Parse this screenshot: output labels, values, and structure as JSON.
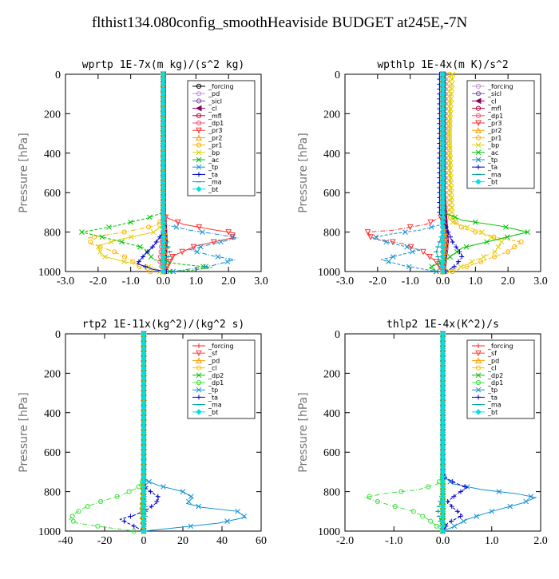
{
  "page": {
    "title": "flthist134.080config_smoothHeaviside  BUDGET at245E,-7N"
  },
  "chart_data": [
    {
      "type": "line",
      "title": "wprtp  1E-7x(m kg)/(s^2 kg)",
      "ylabel": "Pressure [hPa]",
      "xlim": [
        -3.0,
        3.0
      ],
      "ylim": [
        1000,
        0
      ],
      "xticks": [
        "-3.0",
        "-2.0",
        "-1.0",
        "0.0",
        "1.0",
        "2.0",
        "3.0"
      ],
      "yticks": [
        "0",
        "200",
        "400",
        "600",
        "800",
        "1000"
      ],
      "legend_position": "top-right",
      "series": [
        {
          "name": "_forcing",
          "color": "#000000",
          "marker": "o",
          "x": [
            0,
            0,
            0
          ],
          "y": [
            0,
            500,
            1000
          ]
        },
        {
          "name": "_pd",
          "color": "#c890d8",
          "marker": "o",
          "x": [
            0,
            0,
            0
          ],
          "y": [
            0,
            500,
            1000
          ]
        },
        {
          "name": "_sicl",
          "color": "#8050a8",
          "marker": "o",
          "x": [
            0,
            0,
            0
          ],
          "y": [
            0,
            500,
            1000
          ]
        },
        {
          "name": "_cl",
          "color": "#8b0060",
          "marker": "<",
          "x": [
            0,
            0,
            0.05,
            0
          ],
          "y": [
            0,
            700,
            850,
            1000
          ]
        },
        {
          "name": "_mfl",
          "color": "#c00040",
          "marker": "o",
          "x": [
            0,
            0,
            0
          ],
          "y": [
            0,
            500,
            1000
          ]
        },
        {
          "name": "_dp1",
          "color": "#ff5070",
          "marker": "o",
          "x": [
            0,
            0,
            -0.1,
            0
          ],
          "y": [
            0,
            780,
            950,
            1000
          ]
        },
        {
          "name": "_pr3",
          "color": "#ff3030",
          "marker": "v",
          "x": [
            0,
            0,
            0.6,
            1.6,
            2.2,
            2.1,
            1.0,
            0.3,
            0.05
          ],
          "y": [
            0,
            720,
            760,
            790,
            805,
            830,
            870,
            920,
            1000
          ]
        },
        {
          "name": "_pr2",
          "color": "#ff9c00",
          "marker": "^",
          "x": [
            0,
            0,
            0.05,
            0
          ],
          "y": [
            0,
            700,
            850,
            1000
          ]
        },
        {
          "name": "_pr1",
          "color": "#ffb000",
          "marker": "o",
          "x": [
            0,
            0,
            -0.3,
            -1.2,
            -2.3,
            -2.2,
            -1.5,
            -1.0,
            -0.8,
            -0.4
          ],
          "y": [
            0,
            740,
            770,
            800,
            830,
            860,
            900,
            940,
            970,
            1000
          ]
        },
        {
          "name": "_bp",
          "color": "#e0d000",
          "marker": "x",
          "x": [
            0,
            0,
            -0.3,
            -1.4,
            -2.0,
            -1.9,
            -1.2,
            -0.3,
            -0.1
          ],
          "y": [
            0,
            760,
            800,
            840,
            870,
            920,
            950,
            980,
            1000
          ]
        },
        {
          "name": "_ac",
          "color": "#00c000",
          "marker": "x",
          "x": [
            0,
            0,
            -0.5,
            -1.5,
            -2.5,
            -1.5,
            -0.6,
            -0.3,
            0.4,
            1.5,
            0.8,
            0.2
          ],
          "y": [
            0,
            700,
            730,
            770,
            800,
            840,
            880,
            940,
            960,
            980,
            995,
            1000
          ]
        },
        {
          "name": "_tp",
          "color": "#1090d0",
          "marker": "x",
          "x": [
            0,
            0,
            0.8,
            1.6,
            2.3,
            1.5,
            0.8,
            1.5,
            2.2,
            1.5,
            0.3
          ],
          "y": [
            0,
            760,
            790,
            810,
            830,
            860,
            890,
            920,
            940,
            970,
            1000
          ]
        },
        {
          "name": "_ta",
          "color": "#0000d0",
          "marker": "+",
          "x": [
            0,
            0,
            -0.3,
            -0.6,
            -0.8,
            -0.3,
            0.1
          ],
          "y": [
            0,
            800,
            870,
            920,
            960,
            990,
            1000
          ]
        },
        {
          "name": "_ma",
          "color": "#00a0a0",
          "marker": "-",
          "x": [
            0,
            0,
            0.2,
            0
          ],
          "y": [
            0,
            800,
            900,
            1000
          ]
        },
        {
          "name": "_bt",
          "color": "#00e0e0",
          "marker": "D",
          "x": [
            0,
            0,
            0
          ],
          "y": [
            0,
            500,
            1000
          ]
        }
      ]
    },
    {
      "type": "line",
      "title": "wpthlp  1E-4x(m K)/s^2",
      "ylabel": "Pressure [hPa]",
      "xlim": [
        -3.0,
        3.0
      ],
      "ylim": [
        1000,
        0
      ],
      "xticks": [
        "-3.0",
        "-2.0",
        "-1.0",
        "0.0",
        "1.0",
        "2.0",
        "3.0"
      ],
      "yticks": [
        "0",
        "200",
        "400",
        "600",
        "800",
        "1000"
      ],
      "legend_position": "top-right",
      "series": [
        {
          "name": "_forcing",
          "color": "#c890d8",
          "marker": "o",
          "x": [
            0,
            0,
            0
          ],
          "y": [
            0,
            500,
            1000
          ]
        },
        {
          "name": "_sicl",
          "color": "#8050a8",
          "marker": "o",
          "x": [
            0.05,
            0.05,
            0
          ],
          "y": [
            0,
            500,
            1000
          ]
        },
        {
          "name": "_cl",
          "color": "#8b0060",
          "marker": "<",
          "x": [
            0,
            0,
            0.1,
            0
          ],
          "y": [
            0,
            600,
            850,
            1000
          ]
        },
        {
          "name": "_mfl",
          "color": "#c00040",
          "marker": "o",
          "x": [
            0,
            0,
            0
          ],
          "y": [
            0,
            500,
            1000
          ]
        },
        {
          "name": "_dp1",
          "color": "#ff5070",
          "marker": "o",
          "x": [
            0,
            0,
            0
          ],
          "y": [
            0,
            500,
            1000
          ]
        },
        {
          "name": "_pr3",
          "color": "#ff3030",
          "marker": "v",
          "x": [
            0,
            0,
            -0.5,
            -1.5,
            -2.3,
            -2.2,
            -1.2,
            -0.6,
            -0.2,
            0
          ],
          "y": [
            0,
            720,
            760,
            790,
            800,
            830,
            860,
            900,
            950,
            1000
          ]
        },
        {
          "name": "_pr2",
          "color": "#ff9c00",
          "marker": "^",
          "x": [
            0,
            0,
            0.1,
            0
          ],
          "y": [
            0,
            700,
            850,
            1000
          ]
        },
        {
          "name": "_pr1",
          "color": "#ffb000",
          "marker": "o",
          "x": [
            0.2,
            0.2,
            0.2,
            0.6,
            1.4,
            2.4,
            2.0,
            1.0,
            0.3
          ],
          "y": [
            0,
            300,
            720,
            780,
            820,
            850,
            900,
            960,
            1000
          ]
        },
        {
          "name": "_bp",
          "color": "#e0d000",
          "marker": "x",
          "x": [
            0.3,
            0.2,
            0.3,
            1.2,
            1.8,
            1.6,
            0.9,
            0.2
          ],
          "y": [
            0,
            300,
            750,
            800,
            850,
            900,
            950,
            1000
          ]
        },
        {
          "name": "_ac",
          "color": "#00c000",
          "marker": "x",
          "x": [
            0,
            0,
            0.6,
            1.8,
            2.6,
            1.6,
            0.6,
            0.1,
            -0.4,
            -0.2
          ],
          "y": [
            0,
            700,
            740,
            770,
            800,
            840,
            880,
            940,
            980,
            1000
          ]
        },
        {
          "name": "_tp",
          "color": "#1090d0",
          "marker": "x",
          "x": [
            0,
            0,
            -0.7,
            -1.6,
            -2.2,
            -1.5,
            -0.7,
            -1.4,
            -1.9,
            -1.2,
            -0.2
          ],
          "y": [
            0,
            760,
            790,
            810,
            830,
            860,
            890,
            920,
            940,
            970,
            1000
          ]
        },
        {
          "name": "_ta",
          "color": "#0000d0",
          "marker": "+",
          "x": [
            -0.1,
            -0.1,
            0.3,
            0.6,
            0.4,
            0.1
          ],
          "y": [
            0,
            700,
            850,
            920,
            970,
            1000
          ]
        },
        {
          "name": "_ma",
          "color": "#00a0a0",
          "marker": "-",
          "x": [
            0,
            0,
            -0.2,
            0
          ],
          "y": [
            0,
            800,
            900,
            1000
          ]
        },
        {
          "name": "_bt",
          "color": "#00e0e0",
          "marker": "D",
          "x": [
            0,
            0,
            0
          ],
          "y": [
            0,
            500,
            1000
          ]
        }
      ]
    },
    {
      "type": "line",
      "title": "rtp2  1E-11x(kg^2)/(kg^2 s)",
      "ylabel": "Pressure [hPa]",
      "xlim": [
        -40,
        60
      ],
      "ylim": [
        1000,
        0
      ],
      "xticks": [
        "-40",
        "-20",
        "0",
        "20",
        "40",
        "60"
      ],
      "yticks": [
        "0",
        "200",
        "400",
        "600",
        "800",
        "1000"
      ],
      "legend_position": "top-right",
      "series": [
        {
          "name": "_forcing",
          "color": "#ff2020",
          "marker": "+",
          "x": [
            0,
            0,
            0
          ],
          "y": [
            0,
            500,
            1000
          ]
        },
        {
          "name": "_sf",
          "color": "#ff4040",
          "marker": "v",
          "x": [
            0,
            0,
            0
          ],
          "y": [
            0,
            500,
            1000
          ]
        },
        {
          "name": "_pd",
          "color": "#ff9c00",
          "marker": "^",
          "x": [
            0,
            0,
            -1,
            0
          ],
          "y": [
            0,
            700,
            900,
            1000
          ]
        },
        {
          "name": "_cl",
          "color": "#ffc000",
          "marker": "o",
          "x": [
            0,
            0,
            0
          ],
          "y": [
            0,
            500,
            1000
          ]
        },
        {
          "name": "_dp2",
          "color": "#00c000",
          "marker": "x",
          "x": [
            0,
            0,
            -0.5,
            0
          ],
          "y": [
            0,
            700,
            900,
            1000
          ]
        },
        {
          "name": "_dp1",
          "color": "#40e040",
          "marker": "o",
          "x": [
            0,
            0,
            -3,
            -12,
            -22,
            -30,
            -35,
            -38,
            -34,
            -20,
            -5
          ],
          "y": [
            0,
            740,
            780,
            820,
            850,
            880,
            910,
            940,
            960,
            980,
            1000
          ]
        },
        {
          "name": "_tp",
          "color": "#1090d0",
          "marker": "x",
          "x": [
            0,
            0,
            8,
            20,
            25,
            22,
            30,
            48,
            52,
            38,
            10,
            0
          ],
          "y": [
            0,
            740,
            770,
            800,
            830,
            860,
            880,
            900,
            930,
            960,
            990,
            1000
          ]
        },
        {
          "name": "_ta",
          "color": "#0000d0",
          "marker": "+",
          "x": [
            0,
            0,
            2,
            5,
            8,
            6,
            2,
            -5,
            -12,
            -8,
            -2,
            0
          ],
          "y": [
            0,
            760,
            790,
            810,
            830,
            860,
            890,
            920,
            940,
            960,
            990,
            1000
          ]
        },
        {
          "name": "_ma",
          "color": "#00a0a0",
          "marker": "-",
          "x": [
            0,
            0,
            1,
            0
          ],
          "y": [
            0,
            800,
            900,
            1000
          ]
        },
        {
          "name": "_bt",
          "color": "#00e0e0",
          "marker": "D",
          "x": [
            0,
            0,
            0
          ],
          "y": [
            0,
            500,
            1000
          ]
        }
      ]
    },
    {
      "type": "line",
      "title": "thlp2  1E-4x(K^2)/s",
      "ylabel": "Pressure [hPa]",
      "xlim": [
        -2.0,
        2.0
      ],
      "ylim": [
        1000,
        0
      ],
      "xticks": [
        "-2.0",
        "-1.0",
        "0.0",
        "1.0",
        "2.0"
      ],
      "yticks": [
        "0",
        "200",
        "400",
        "600",
        "800",
        "1000"
      ],
      "legend_position": "top-right",
      "series": [
        {
          "name": "_forcing",
          "color": "#ff2020",
          "marker": "+",
          "x": [
            0,
            0,
            0
          ],
          "y": [
            0,
            500,
            1000
          ]
        },
        {
          "name": "_sf",
          "color": "#ff4040",
          "marker": "v",
          "x": [
            0,
            0,
            0
          ],
          "y": [
            0,
            500,
            1000
          ]
        },
        {
          "name": "_pd",
          "color": "#ff9c00",
          "marker": "^",
          "x": [
            0,
            0,
            0
          ],
          "y": [
            0,
            500,
            1000
          ]
        },
        {
          "name": "_cl",
          "color": "#ffc000",
          "marker": "o",
          "x": [
            0,
            0,
            0
          ],
          "y": [
            0,
            500,
            1000
          ]
        },
        {
          "name": "_dp2",
          "color": "#00c000",
          "marker": "x",
          "x": [
            0,
            0,
            0
          ],
          "y": [
            0,
            500,
            1000
          ]
        },
        {
          "name": "_dp1",
          "color": "#40e040",
          "marker": "o",
          "x": [
            0,
            0,
            -0.1,
            -0.5,
            -1.2,
            -1.6,
            -1.2,
            -0.6,
            -0.3,
            -0.1,
            0
          ],
          "y": [
            0,
            720,
            760,
            790,
            810,
            830,
            860,
            900,
            940,
            980,
            1000
          ]
        },
        {
          "name": "_tp",
          "color": "#1090d0",
          "marker": "x",
          "x": [
            0,
            0,
            0.2,
            0.8,
            1.5,
            1.9,
            1.6,
            1.0,
            0.5,
            0.2,
            0
          ],
          "y": [
            0,
            720,
            760,
            790,
            810,
            830,
            860,
            900,
            940,
            980,
            1000
          ]
        },
        {
          "name": "_ta",
          "color": "#0000d0",
          "marker": "+",
          "x": [
            0,
            0,
            0.2,
            0.5,
            0.3,
            0.1,
            0.2,
            0.4,
            0.1,
            0
          ],
          "y": [
            0,
            720,
            750,
            780,
            810,
            850,
            880,
            920,
            960,
            1000
          ]
        },
        {
          "name": "_ma",
          "color": "#00a0a0",
          "marker": "-",
          "x": [
            0,
            0,
            -0.1,
            0
          ],
          "y": [
            0,
            800,
            900,
            1000
          ]
        },
        {
          "name": "_bt",
          "color": "#00e0e0",
          "marker": "D",
          "x": [
            0,
            0,
            0
          ],
          "y": [
            0,
            500,
            1000
          ]
        }
      ]
    }
  ]
}
